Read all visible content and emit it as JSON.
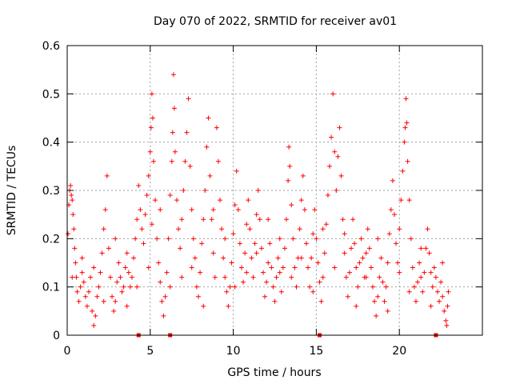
{
  "chart_data": {
    "type": "scatter",
    "title": "Day 070 of 2022, SRMTID for receiver av01",
    "xlabel": "GPS time / hours",
    "ylabel": "SRMTID / TECUs",
    "xlim": [
      0,
      25
    ],
    "ylim": [
      0,
      0.6
    ],
    "x_ticks": [
      0,
      5,
      10,
      15,
      20
    ],
    "x_tick_labels": [
      "0",
      "5",
      "10",
      "15",
      "20"
    ],
    "y_ticks": [
      0,
      0.1,
      0.2,
      0.3,
      0.4,
      0.5,
      0.6
    ],
    "y_tick_labels": [
      "0",
      "0.1",
      "0.2",
      "0.3",
      "0.4",
      "0.5",
      "0.6"
    ],
    "grid": true,
    "marker": "plus",
    "color": "#ff0000",
    "series": [
      {
        "name": "SRMTID av01",
        "points": [
          [
            0.05,
            0.21
          ],
          [
            0.1,
            0.27
          ],
          [
            0.15,
            0.3
          ],
          [
            0.2,
            0.31
          ],
          [
            0.25,
            0.29
          ],
          [
            0.3,
            0.28
          ],
          [
            0.35,
            0.25
          ],
          [
            0.4,
            0.22
          ],
          [
            0.45,
            0.18
          ],
          [
            0.5,
            0.15
          ],
          [
            0.55,
            0.12
          ],
          [
            0.6,
            0.09
          ],
          [
            0.7,
            0.07
          ],
          [
            0.8,
            0.1
          ],
          [
            0.9,
            0.13
          ],
          [
            1.0,
            0.11
          ],
          [
            1.1,
            0.08
          ],
          [
            1.2,
            0.06
          ],
          [
            1.3,
            0.09
          ],
          [
            1.4,
            0.12
          ],
          [
            1.5,
            0.05
          ],
          [
            1.6,
            0.02
          ],
          [
            1.7,
            0.04
          ],
          [
            1.8,
            0.08
          ],
          [
            1.9,
            0.1
          ],
          [
            2.0,
            0.13
          ],
          [
            2.1,
            0.17
          ],
          [
            2.2,
            0.22
          ],
          [
            2.3,
            0.26
          ],
          [
            2.4,
            0.33
          ],
          [
            2.5,
            0.18
          ],
          [
            2.6,
            0.12
          ],
          [
            2.7,
            0.08
          ],
          [
            2.8,
            0.05
          ],
          [
            2.9,
            0.07
          ],
          [
            3.0,
            0.11
          ],
          [
            3.1,
            0.15
          ],
          [
            3.2,
            0.12
          ],
          [
            3.3,
            0.09
          ],
          [
            3.4,
            0.1
          ],
          [
            3.5,
            0.14
          ],
          [
            3.6,
            0.17
          ],
          [
            3.7,
            0.13
          ],
          [
            3.8,
            0.1
          ],
          [
            3.9,
            0.12
          ],
          [
            4.0,
            0.16
          ],
          [
            4.1,
            0.2
          ],
          [
            4.2,
            0.24
          ],
          [
            4.3,
            0.31
          ],
          [
            4.4,
            0.26
          ],
          [
            4.5,
            0.22
          ],
          [
            4.6,
            0.19
          ],
          [
            4.7,
            0.25
          ],
          [
            4.8,
            0.29
          ],
          [
            4.9,
            0.33
          ],
          [
            5.0,
            0.38
          ],
          [
            5.05,
            0.43
          ],
          [
            5.1,
            0.5
          ],
          [
            5.15,
            0.45
          ],
          [
            5.2,
            0.36
          ],
          [
            5.3,
            0.28
          ],
          [
            5.4,
            0.2
          ],
          [
            5.5,
            0.15
          ],
          [
            5.6,
            0.11
          ],
          [
            5.7,
            0.07
          ],
          [
            5.8,
            0.04
          ],
          [
            5.9,
            0.08
          ],
          [
            6.0,
            0.13
          ],
          [
            6.1,
            0.2
          ],
          [
            6.2,
            0.29
          ],
          [
            6.3,
            0.36
          ],
          [
            6.35,
            0.42
          ],
          [
            6.4,
            0.54
          ],
          [
            6.45,
            0.47
          ],
          [
            6.5,
            0.38
          ],
          [
            6.6,
            0.28
          ],
          [
            6.7,
            0.22
          ],
          [
            6.8,
            0.18
          ],
          [
            6.9,
            0.24
          ],
          [
            7.0,
            0.3
          ],
          [
            7.1,
            0.36
          ],
          [
            7.2,
            0.42
          ],
          [
            7.3,
            0.49
          ],
          [
            7.4,
            0.35
          ],
          [
            7.5,
            0.26
          ],
          [
            7.6,
            0.2
          ],
          [
            7.7,
            0.16
          ],
          [
            7.8,
            0.1
          ],
          [
            7.9,
            0.08
          ],
          [
            8.0,
            0.13
          ],
          [
            8.1,
            0.19
          ],
          [
            8.2,
            0.24
          ],
          [
            8.3,
            0.3
          ],
          [
            8.4,
            0.39
          ],
          [
            8.5,
            0.45
          ],
          [
            8.6,
            0.33
          ],
          [
            8.7,
            0.24
          ],
          [
            8.8,
            0.17
          ],
          [
            8.9,
            0.12
          ],
          [
            9.0,
            0.43
          ],
          [
            9.1,
            0.36
          ],
          [
            9.2,
            0.28
          ],
          [
            9.3,
            0.22
          ],
          [
            9.4,
            0.16
          ],
          [
            9.5,
            0.12
          ],
          [
            9.6,
            0.09
          ],
          [
            9.7,
            0.06
          ],
          [
            9.8,
            0.1
          ],
          [
            9.9,
            0.15
          ],
          [
            10.0,
            0.21
          ],
          [
            10.1,
            0.27
          ],
          [
            10.2,
            0.34
          ],
          [
            10.3,
            0.26
          ],
          [
            10.4,
            0.19
          ],
          [
            10.5,
            0.14
          ],
          [
            10.6,
            0.11
          ],
          [
            10.7,
            0.17
          ],
          [
            10.8,
            0.23
          ],
          [
            10.9,
            0.28
          ],
          [
            11.0,
            0.22
          ],
          [
            11.1,
            0.16
          ],
          [
            11.2,
            0.12
          ],
          [
            11.3,
            0.19
          ],
          [
            11.4,
            0.25
          ],
          [
            11.5,
            0.3
          ],
          [
            11.6,
            0.24
          ],
          [
            11.7,
            0.18
          ],
          [
            11.8,
            0.13
          ],
          [
            11.9,
            0.08
          ],
          [
            12.0,
            0.11
          ],
          [
            12.1,
            0.15
          ],
          [
            12.2,
            0.19
          ],
          [
            12.3,
            0.14
          ],
          [
            12.4,
            0.1
          ],
          [
            12.5,
            0.07
          ],
          [
            12.6,
            0.12
          ],
          [
            12.7,
            0.16
          ],
          [
            12.8,
            0.13
          ],
          [
            12.9,
            0.09
          ],
          [
            13.0,
            0.14
          ],
          [
            13.1,
            0.18
          ],
          [
            13.2,
            0.24
          ],
          [
            13.3,
            0.32
          ],
          [
            13.35,
            0.39
          ],
          [
            13.4,
            0.35
          ],
          [
            13.5,
            0.27
          ],
          [
            13.6,
            0.2
          ],
          [
            13.7,
            0.14
          ],
          [
            13.8,
            0.1
          ],
          [
            13.9,
            0.16
          ],
          [
            14.0,
            0.22
          ],
          [
            14.1,
            0.28
          ],
          [
            14.2,
            0.33
          ],
          [
            14.3,
            0.26
          ],
          [
            14.4,
            0.19
          ],
          [
            14.5,
            0.14
          ],
          [
            14.6,
            0.1
          ],
          [
            14.7,
            0.16
          ],
          [
            14.8,
            0.21
          ],
          [
            14.9,
            0.26
          ],
          [
            15.0,
            0.2
          ],
          [
            15.1,
            0.15
          ],
          [
            15.2,
            0.11
          ],
          [
            15.3,
            0.07
          ],
          [
            15.4,
            0.12
          ],
          [
            15.5,
            0.17
          ],
          [
            15.6,
            0.23
          ],
          [
            15.7,
            0.29
          ],
          [
            15.8,
            0.35
          ],
          [
            15.9,
            0.41
          ],
          [
            16.0,
            0.5
          ],
          [
            16.1,
            0.38
          ],
          [
            16.2,
            0.3
          ],
          [
            16.3,
            0.37
          ],
          [
            16.4,
            0.43
          ],
          [
            16.5,
            0.33
          ],
          [
            16.6,
            0.24
          ],
          [
            16.7,
            0.17
          ],
          [
            16.8,
            0.12
          ],
          [
            16.9,
            0.08
          ],
          [
            17.0,
            0.13
          ],
          [
            17.1,
            0.18
          ],
          [
            17.2,
            0.24
          ],
          [
            17.3,
            0.19
          ],
          [
            17.4,
            0.14
          ],
          [
            17.5,
            0.1
          ],
          [
            17.6,
            0.15
          ],
          [
            17.7,
            0.2
          ],
          [
            17.8,
            0.16
          ],
          [
            17.9,
            0.12
          ],
          [
            18.0,
            0.17
          ],
          [
            18.1,
            0.22
          ],
          [
            18.2,
            0.18
          ],
          [
            18.3,
            0.14
          ],
          [
            18.4,
            0.1
          ],
          [
            18.5,
            0.07
          ],
          [
            18.6,
            0.04
          ],
          [
            18.7,
            0.08
          ],
          [
            18.8,
            0.12
          ],
          [
            18.9,
            0.16
          ],
          [
            19.0,
            0.11
          ],
          [
            19.1,
            0.07
          ],
          [
            19.2,
            0.1
          ],
          [
            19.3,
            0.15
          ],
          [
            19.4,
            0.21
          ],
          [
            19.5,
            0.26
          ],
          [
            19.6,
            0.32
          ],
          [
            19.7,
            0.25
          ],
          [
            19.8,
            0.19
          ],
          [
            19.9,
            0.15
          ],
          [
            20.0,
            0.22
          ],
          [
            20.1,
            0.28
          ],
          [
            20.2,
            0.34
          ],
          [
            20.3,
            0.4
          ],
          [
            20.35,
            0.43
          ],
          [
            20.4,
            0.49
          ],
          [
            20.45,
            0.44
          ],
          [
            20.5,
            0.36
          ],
          [
            20.6,
            0.28
          ],
          [
            20.7,
            0.2
          ],
          [
            20.8,
            0.14
          ],
          [
            20.9,
            0.1
          ],
          [
            21.0,
            0.07
          ],
          [
            21.1,
            0.11
          ],
          [
            21.2,
            0.15
          ],
          [
            21.3,
            0.12
          ],
          [
            21.4,
            0.09
          ],
          [
            21.5,
            0.13
          ],
          [
            21.6,
            0.18
          ],
          [
            21.7,
            0.22
          ],
          [
            21.8,
            0.17
          ],
          [
            21.9,
            0.13
          ],
          [
            22.0,
            0.1
          ],
          [
            22.1,
            0.14
          ],
          [
            22.2,
            0.12
          ],
          [
            22.3,
            0.09
          ],
          [
            22.4,
            0.07
          ],
          [
            22.5,
            0.11
          ],
          [
            22.6,
            0.08
          ],
          [
            22.7,
            0.05
          ],
          [
            22.8,
            0.03
          ],
          [
            22.85,
            0.02
          ],
          [
            22.9,
            0.06
          ],
          [
            22.95,
            0.09
          ],
          [
            0.3,
            0.12
          ],
          [
            0.9,
            0.16
          ],
          [
            1.6,
            0.14
          ],
          [
            2.2,
            0.07
          ],
          [
            2.9,
            0.2
          ],
          [
            3.6,
            0.06
          ],
          [
            4.2,
            0.1
          ],
          [
            4.9,
            0.14
          ],
          [
            5.6,
            0.26
          ],
          [
            6.2,
            0.1
          ],
          [
            6.9,
            0.12
          ],
          [
            7.5,
            0.14
          ],
          [
            8.2,
            0.06
          ],
          [
            8.8,
            0.26
          ],
          [
            9.5,
            0.2
          ],
          [
            10.1,
            0.1
          ],
          [
            10.8,
            0.13
          ],
          [
            11.4,
            0.17
          ],
          [
            12.1,
            0.24
          ],
          [
            12.8,
            0.2
          ],
          [
            13.5,
            0.12
          ],
          [
            14.1,
            0.16
          ],
          [
            14.8,
            0.09
          ],
          [
            15.4,
            0.22
          ],
          [
            16.1,
            0.14
          ],
          [
            16.7,
            0.21
          ],
          [
            17.4,
            0.06
          ],
          [
            18.0,
            0.12
          ],
          [
            18.7,
            0.2
          ],
          [
            19.3,
            0.05
          ],
          [
            20.0,
            0.13
          ],
          [
            20.6,
            0.09
          ],
          [
            21.3,
            0.18
          ],
          [
            21.9,
            0.06
          ],
          [
            22.6,
            0.15
          ],
          [
            5.1,
            0.23
          ]
        ]
      }
    ],
    "gap_markers_x": [
      4.3,
      6.2,
      15.2,
      22.2
    ]
  }
}
